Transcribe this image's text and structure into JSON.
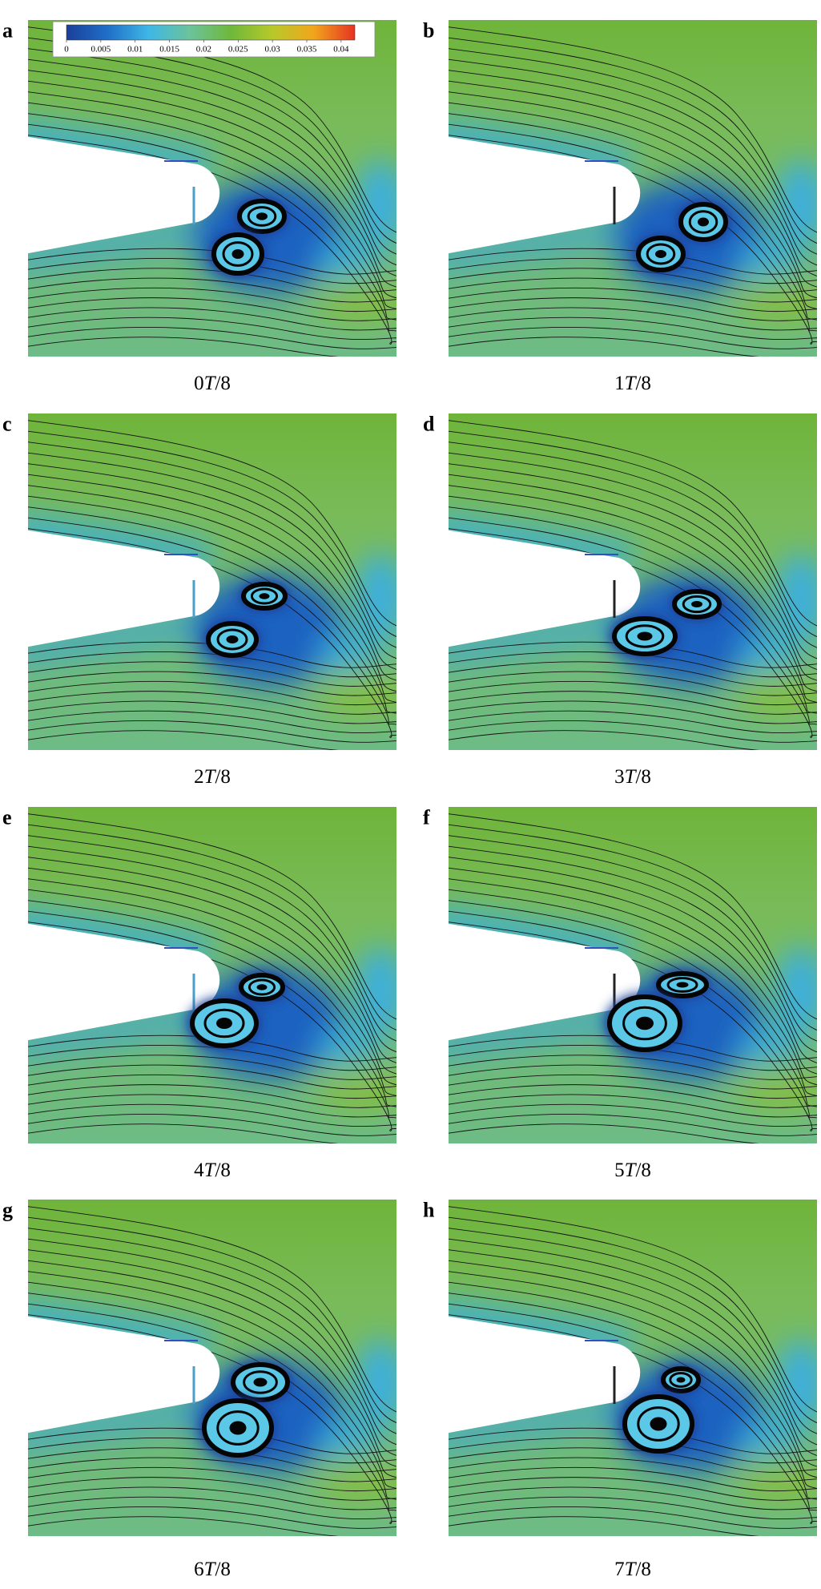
{
  "colorbar": {
    "range": [
      0,
      0.042
    ],
    "ticks": [
      0,
      0.005,
      0.01,
      0.015,
      0.02,
      0.025,
      0.03,
      0.035,
      0.04
    ],
    "colors": [
      "#1b3f9a",
      "#1f6fc8",
      "#3fb7e6",
      "#6cc39a",
      "#6fb83a",
      "#b7c92a",
      "#f2a51c",
      "#e63323"
    ]
  },
  "panels": [
    {
      "label": "a",
      "caption": [
        "0",
        "T",
        "/8"
      ]
    },
    {
      "label": "b",
      "caption": [
        "1",
        "T",
        "/8"
      ]
    },
    {
      "label": "c",
      "caption": [
        "2",
        "T",
        "/8"
      ]
    },
    {
      "label": "d",
      "caption": [
        "3",
        "T",
        "/8"
      ]
    },
    {
      "label": "e",
      "caption": [
        "4",
        "T",
        "/8"
      ]
    },
    {
      "label": "f",
      "caption": [
        "5",
        "T",
        "/8"
      ]
    },
    {
      "label": "g",
      "caption": [
        "6",
        "T",
        "/8"
      ]
    },
    {
      "label": "h",
      "caption": [
        "7",
        "T",
        "/8"
      ]
    }
  ]
}
